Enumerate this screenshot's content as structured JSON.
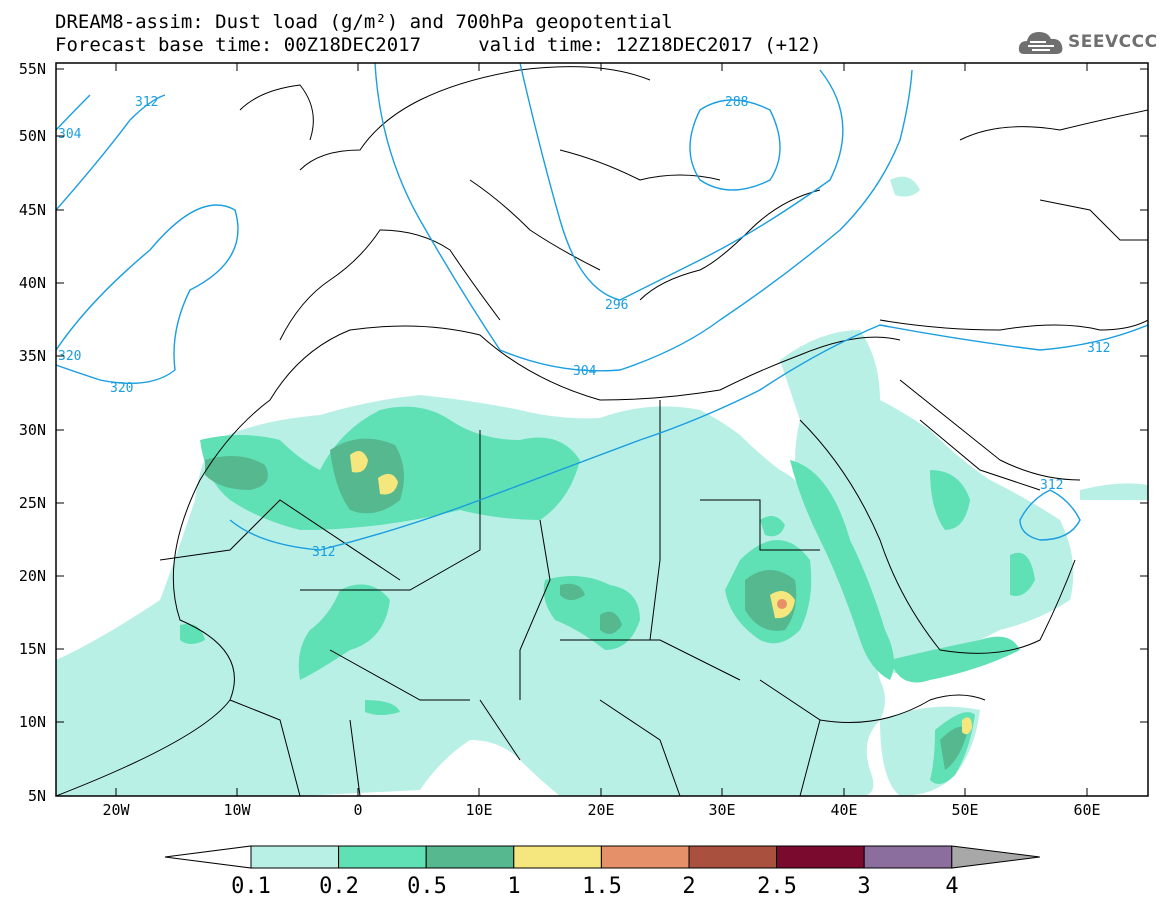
{
  "title": {
    "line1": "DREAM8-assim: Dust load (g/m²) and 700hPa geopotential",
    "line2": "Forecast base time: 00Z18DEC2017     valid time: 12Z18DEC2017 (+12)"
  },
  "logo": {
    "text": "SEEVCCC",
    "icon": "cloud-icon"
  },
  "map": {
    "lat_labels": [
      "55N",
      "50N",
      "45N",
      "40N",
      "35N",
      "30N",
      "25N",
      "20N",
      "15N",
      "10N",
      "5N"
    ],
    "lon_labels": [
      "20W",
      "10W",
      "0",
      "10E",
      "20E",
      "30E",
      "40E",
      "50E",
      "60E"
    ],
    "contour_labels": [
      "312",
      "304",
      "288",
      "320",
      "320",
      "304",
      "312",
      "312",
      "312",
      "296"
    ],
    "colors": {
      "contour": "#1a9ee0",
      "border": "#000000"
    }
  },
  "colorbar": {
    "ticks": [
      "0.1",
      "0.2",
      "0.5",
      "1",
      "1.5",
      "2",
      "2.5",
      "3",
      "4"
    ],
    "colors": [
      "#ffffff",
      "#b9f0e6",
      "#5fe0b5",
      "#55b88f",
      "#f5e67d",
      "#e6906a",
      "#a9503f",
      "#7a0a2e",
      "#8c6e9e",
      "#a8a8a8"
    ]
  }
}
